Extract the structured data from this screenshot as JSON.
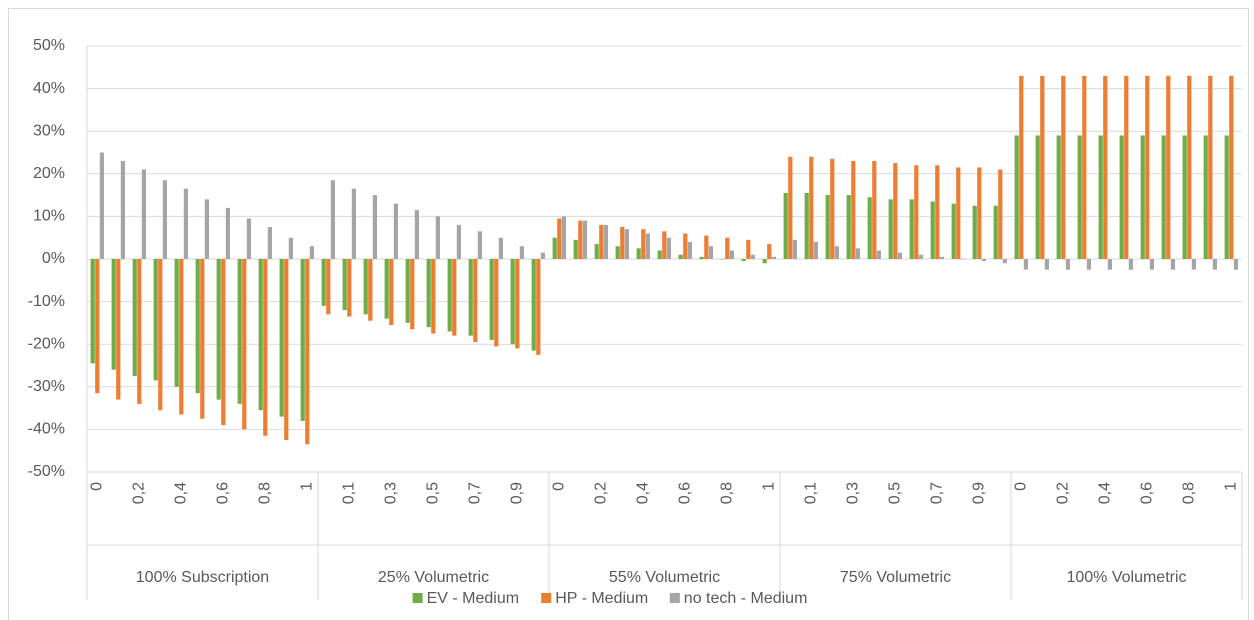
{
  "chart_data": {
    "type": "bar",
    "groups": [
      "100% Subscription",
      "25% Volumetric",
      "55% Volumetric",
      "75% Volumetric",
      "100% Volumetric"
    ],
    "categories": [
      "0",
      null,
      "0,2",
      null,
      "0,4",
      null,
      "0,6",
      null,
      "0,8",
      null,
      "1",
      null,
      "0,1",
      null,
      "0,3",
      null,
      "0,5",
      null,
      "0,7",
      null,
      "0,9",
      null,
      "0",
      null,
      "0,2",
      null,
      "0,4",
      null,
      "0,6",
      null,
      "0,8",
      null,
      "1",
      null,
      "0,1",
      null,
      "0,3",
      null,
      "0,5",
      null,
      "0,7",
      null,
      "0,9",
      null,
      "0",
      null,
      "0,2",
      null,
      "0,4",
      null,
      "0,6",
      null,
      "0,8",
      null,
      "1"
    ],
    "series": [
      {
        "name": "EV - Medium",
        "color": "#70ad47",
        "values": [
          -24.5,
          -26,
          -27.5,
          -28.5,
          -30,
          -31.5,
          -33,
          -34,
          -35.5,
          -37,
          -38,
          -11,
          -12,
          -13,
          -14,
          -15,
          -16,
          -17,
          -18,
          -19,
          -20,
          -21.5,
          5,
          4.5,
          3.5,
          3,
          2.5,
          2,
          1,
          0.5,
          0,
          -0.5,
          -1,
          15.5,
          15.5,
          15,
          15,
          14.5,
          14,
          14,
          13.5,
          13,
          12.5,
          12.5,
          29,
          29,
          29,
          29,
          29,
          29,
          29,
          29,
          29,
          29,
          29
        ]
      },
      {
        "name": "HP - Medium",
        "color": "#ed7d31",
        "values": [
          -31.5,
          -33,
          -34,
          -35.5,
          -36.5,
          -37.5,
          -39,
          -40,
          -41.5,
          -42.5,
          -43.5,
          -13,
          -13.5,
          -14.5,
          -15.5,
          -16.5,
          -17.5,
          -18,
          -19.5,
          -20.5,
          -21,
          -22.5,
          9.5,
          9,
          8,
          7.5,
          7,
          6.5,
          6,
          5.5,
          5,
          4.5,
          3.5,
          24,
          24,
          23.5,
          23,
          23,
          22.5,
          22,
          22,
          21.5,
          21.5,
          21,
          43,
          43,
          43,
          43,
          43,
          43,
          43,
          43,
          43,
          43,
          43
        ]
      },
      {
        "name": "no tech - Medium",
        "color": "#a5a5a5",
        "values": [
          25,
          23,
          21,
          18.5,
          16.5,
          14,
          12,
          9.5,
          7.5,
          5,
          3,
          18.5,
          16.5,
          15,
          13,
          11.5,
          10,
          8,
          6.5,
          5,
          3,
          1.5,
          10,
          9,
          8,
          7,
          6,
          5,
          4,
          3,
          2,
          1,
          0.5,
          4.5,
          4,
          3,
          2.5,
          2,
          1.5,
          1,
          0.5,
          0,
          -0.5,
          -1,
          -2.5,
          -2.5,
          -2.5,
          -2.5,
          -2.5,
          -2.5,
          -2.5,
          -2.5,
          -2.5,
          -2.5,
          -2.5
        ]
      }
    ],
    "ylim": [
      -50,
      50
    ],
    "yticks": [
      {
        "value": -50,
        "label": "-50%"
      },
      {
        "value": -40,
        "label": "-40%"
      },
      {
        "value": -30,
        "label": "-30%"
      },
      {
        "value": -20,
        "label": "-20%"
      },
      {
        "value": -10,
        "label": "-10%"
      },
      {
        "value": 0,
        "label": "0%"
      },
      {
        "value": 10,
        "label": "10%"
      },
      {
        "value": 20,
        "label": "20%"
      },
      {
        "value": 30,
        "label": "30%"
      },
      {
        "value": 40,
        "label": "40%"
      },
      {
        "value": 50,
        "label": "50%"
      }
    ],
    "grid": true,
    "legend": "bottom"
  }
}
